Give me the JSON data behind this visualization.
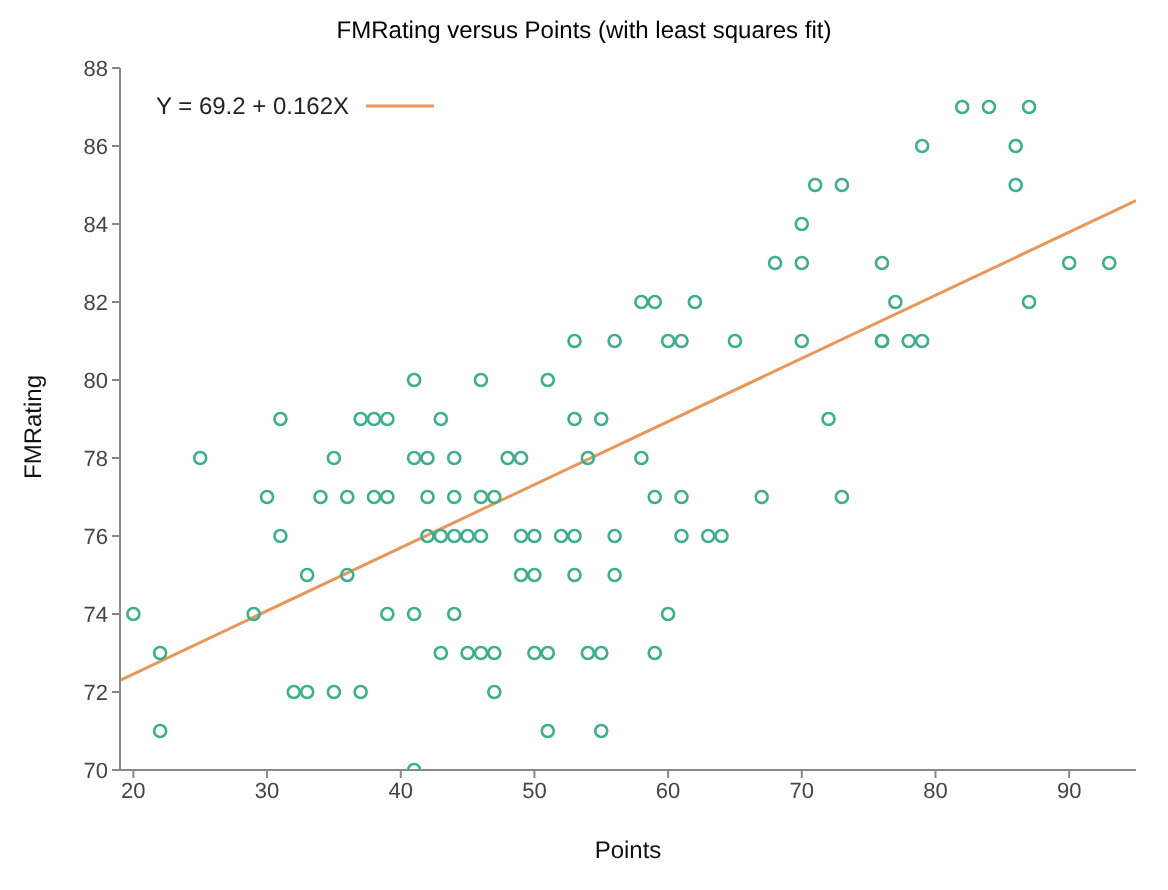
{
  "chart_data": {
    "type": "scatter",
    "title": "FMRating versus Points (with least squares fit)",
    "xlabel": "Points",
    "ylabel": "FMRating",
    "xlim": [
      19,
      95
    ],
    "xticks": [
      20,
      30,
      40,
      50,
      60,
      70,
      80,
      90
    ],
    "ylim": [
      70,
      88
    ],
    "yticks": [
      70,
      72,
      74,
      76,
      78,
      80,
      82,
      84,
      86,
      88
    ],
    "grid": false,
    "legend": "top left",
    "marker": "circle",
    "series": [
      {
        "color": "#3fae8a",
        "x": [
          20,
          22,
          22,
          25,
          29,
          30,
          31,
          31,
          32,
          33,
          33,
          34,
          35,
          35,
          36,
          36,
          37,
          37,
          38,
          38,
          39,
          39,
          39,
          41,
          41,
          41,
          41,
          42,
          42,
          42,
          43,
          43,
          43,
          44,
          44,
          44,
          44,
          45,
          45,
          46,
          46,
          46,
          46,
          47,
          47,
          47,
          48,
          49,
          49,
          49,
          50,
          50,
          50,
          51,
          51,
          51,
          52,
          53,
          53,
          53,
          53,
          54,
          54,
          55,
          55,
          55,
          56,
          56,
          56,
          58,
          58,
          59,
          59,
          59,
          60,
          60,
          61,
          61,
          61,
          62,
          63,
          64,
          65,
          67,
          68,
          70,
          70,
          70,
          71,
          72,
          73,
          73,
          76,
          76,
          76,
          77,
          78,
          79,
          79,
          82,
          84,
          86,
          86,
          87,
          87,
          90,
          93
        ],
        "values": [
          74,
          73,
          71,
          78,
          74,
          77,
          79,
          76,
          72,
          72,
          75,
          77,
          78,
          72,
          77,
          75,
          79,
          72,
          79,
          77,
          79,
          77,
          74,
          80,
          78,
          74,
          70,
          78,
          77,
          76,
          79,
          76,
          73,
          78,
          77,
          76,
          74,
          76,
          73,
          80,
          77,
          76,
          73,
          77,
          73,
          72,
          78,
          78,
          76,
          75,
          76,
          75,
          73,
          80,
          73,
          71,
          76,
          81,
          79,
          76,
          75,
          78,
          73,
          79,
          73,
          71,
          81,
          76,
          75,
          82,
          78,
          82,
          77,
          73,
          81,
          74,
          81,
          77,
          76,
          82,
          76,
          76,
          81,
          77,
          83,
          84,
          83,
          81,
          85,
          79,
          85,
          77,
          83,
          81,
          81,
          82,
          81,
          86,
          81,
          87,
          87,
          86,
          85,
          87,
          82,
          83,
          83
        ]
      },
      {
        "type": "line",
        "name": "Y = 69.2 + 0.162X",
        "color": "#e8975a",
        "x": [
          19,
          95
        ],
        "values": [
          72.3,
          84.6
        ],
        "marker": "none"
      }
    ]
  }
}
